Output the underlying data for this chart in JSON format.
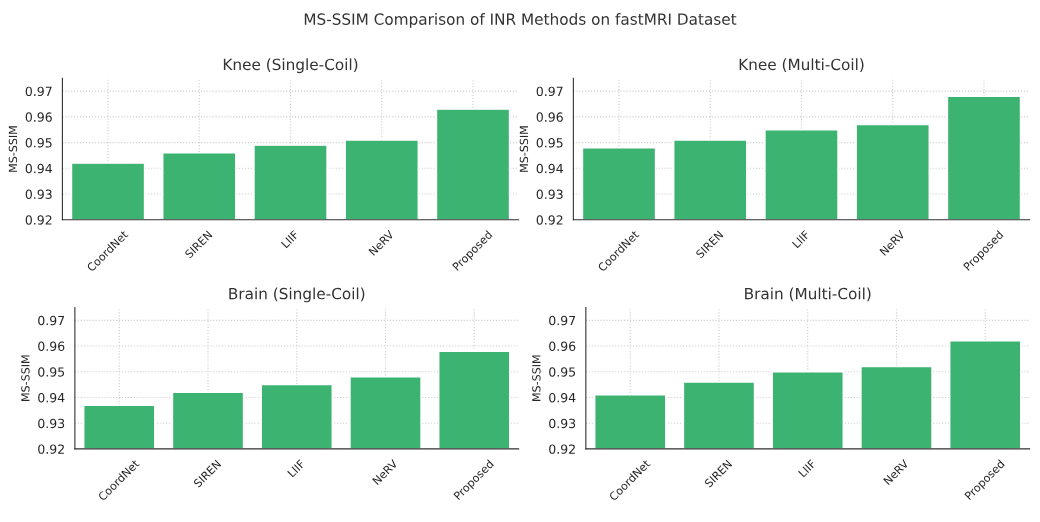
{
  "chart_data": [
    {
      "type": "bar",
      "title": "Knee (Single-Coil)",
      "ylabel": "MS-SSIM",
      "annotations": [
        "MS-SSIM Comparison of INR Methods on fastMRI Dataset"
      ],
      "categories": [
        "CoordNet",
        "SIREN",
        "LIIF",
        "NeRV",
        "Proposed"
      ],
      "values": [
        0.942,
        0.946,
        0.949,
        0.951,
        0.963
      ],
      "color": "#3cb371",
      "ylim": [
        0.92,
        0.975
      ],
      "yticks": [
        0.92,
        0.93,
        0.94,
        0.95,
        0.96,
        0.97
      ],
      "grid": true,
      "legend": false
    },
    {
      "type": "bar",
      "title": "Knee (Multi-Coil)",
      "ylabel": "MS-SSIM",
      "categories": [
        "CoordNet",
        "SIREN",
        "LIIF",
        "NeRV",
        "Proposed"
      ],
      "values": [
        0.948,
        0.951,
        0.955,
        0.957,
        0.968
      ],
      "color": "#3cb371",
      "ylim": [
        0.92,
        0.975
      ],
      "yticks": [
        0.92,
        0.93,
        0.94,
        0.95,
        0.96,
        0.97
      ],
      "grid": true,
      "legend": false
    },
    {
      "type": "bar",
      "title": "Brain (Single-Coil)",
      "ylabel": "MS-SSIM",
      "categories": [
        "CoordNet",
        "SIREN",
        "LIIF",
        "NeRV",
        "Proposed"
      ],
      "values": [
        0.937,
        0.942,
        0.945,
        0.948,
        0.958
      ],
      "color": "#3cb371",
      "ylim": [
        0.92,
        0.975
      ],
      "yticks": [
        0.92,
        0.93,
        0.94,
        0.95,
        0.96,
        0.97
      ],
      "grid": true,
      "legend": false
    },
    {
      "type": "bar",
      "title": "Brain (Multi-Coil)",
      "ylabel": "MS-SSIM",
      "categories": [
        "CoordNet",
        "SIREN",
        "LIIF",
        "NeRV",
        "Proposed"
      ],
      "values": [
        0.941,
        0.946,
        0.95,
        0.952,
        0.962
      ],
      "color": "#3cb371",
      "ylim": [
        0.92,
        0.975
      ],
      "yticks": [
        0.92,
        0.93,
        0.94,
        0.95,
        0.96,
        0.97
      ],
      "grid": true,
      "legend": false
    }
  ]
}
